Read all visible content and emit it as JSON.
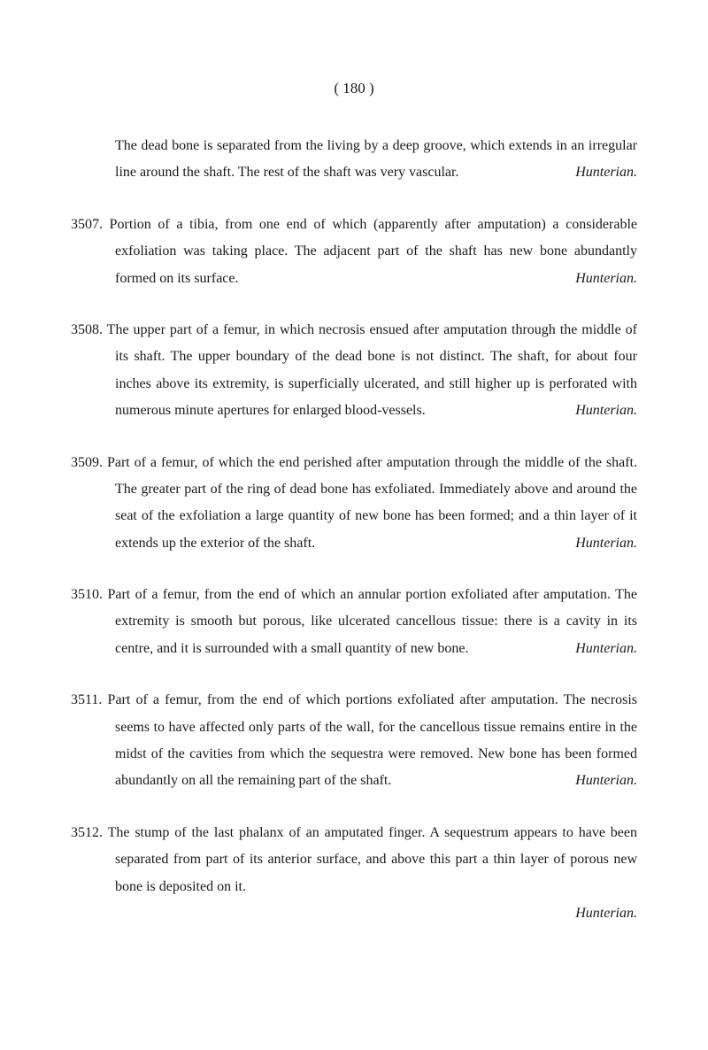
{
  "page_number": "(   180   )",
  "intro": {
    "text": "The dead bone is separated from the living by a deep groove, which extends in an irregular line around the shaft.   The rest of the shaft was very vascular.",
    "source": "Hunterian."
  },
  "entries": [
    {
      "number": "3507.",
      "text": "Portion of a tibia, from one end of which (apparently after amputation) a considerable exfoliation was taking place.   The adjacent part of the shaft has new bone abundantly formed on its surface.",
      "source": "Hunterian."
    },
    {
      "number": "3508.",
      "text": "The upper part of a femur, in which necrosis ensued after amputation through the middle of its shaft.   The upper boundary of the dead bone is not distinct.   The shaft, for about four inches above its extremity, is superficially ulcerated, and still higher up is perforated with numerous minute apertures for enlarged blood-vessels.",
      "source": "Hunterian."
    },
    {
      "number": "3509.",
      "text": "Part of a femur, of which the end perished after amputation through the middle of the shaft.   The greater part of the ring of dead bone has exfoliated.   Immediately above and around the seat of the exfoliation a large quantity of new bone has been formed; and a thin layer of it extends up the exterior of the shaft.",
      "source": "Hunterian."
    },
    {
      "number": "3510.",
      "text": "Part of a femur, from the end of which an annular portion exfoliated after amputation.   The extremity is smooth but porous, like ulcerated cancellous tissue: there is a cavity in its centre, and it is surrounded with a small quantity of new bone.",
      "source": "Hunterian."
    },
    {
      "number": "3511.",
      "text": "Part of a femur, from the end of which portions exfoliated after amputation.   The necrosis seems to have affected only parts of the wall, for the cancellous tissue remains entire in the midst of the cavities from which the sequestra were removed.   New bone has been formed abundantly on all the remaining part of the shaft.",
      "source": "Hunterian."
    },
    {
      "number": "3512.",
      "text": "The stump of the last phalanx of an amputated finger.   A sequestrum appears to have been separated from part of its anterior surface, and above this part a thin layer of porous new bone is deposited on it.",
      "source": "Hunterian.",
      "source_below": true
    }
  ]
}
